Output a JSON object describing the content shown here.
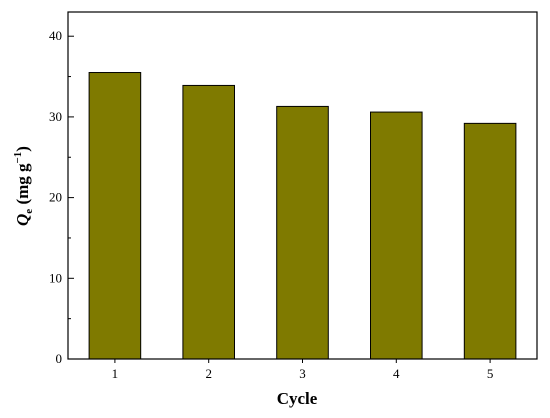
{
  "chart_data": {
    "type": "bar",
    "categories": [
      "1",
      "2",
      "3",
      "4",
      "5"
    ],
    "values": [
      35.5,
      33.9,
      31.3,
      30.6,
      29.2
    ],
    "xlabel": "Cycle",
    "ylabel": {
      "symbol": "Q",
      "subscript": "e",
      "unit_prefix": " (mg g",
      "unit_exp": "−1",
      "unit_suffix": ")"
    },
    "ylim": [
      0,
      43
    ],
    "yticks": [
      0,
      10,
      20,
      30,
      40
    ],
    "minor_yticks": [
      5,
      15,
      25,
      35
    ],
    "bar_color": "#7f7a00",
    "bar_edge_color": "#000000",
    "grid": false,
    "legend": "none"
  }
}
